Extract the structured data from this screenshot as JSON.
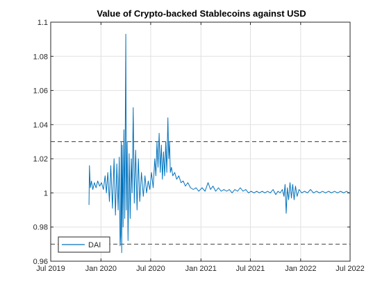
{
  "chart_data": {
    "type": "line",
    "title": "Value of Crypto-backed Stablecoins against USD",
    "xlabel": "",
    "ylabel": "",
    "x_ticks": [
      "Jul 2019",
      "Jan 2020",
      "Jul 2020",
      "Jan 2021",
      "Jul 2021",
      "Jan 2022",
      "Jul 2022"
    ],
    "y_ticks": [
      "0.96",
      "0.98",
      "1",
      "1.02",
      "1.04",
      "1.06",
      "1.08",
      "1.1"
    ],
    "xlim": [
      "2019-07-01",
      "2022-07-01"
    ],
    "ylim": [
      0.96,
      1.1
    ],
    "grid": true,
    "legend_position": "bottom-left",
    "reference_lines": [
      1.03,
      0.97
    ],
    "line_color": "#0072BD",
    "series": [
      {
        "name": "DAI",
        "points": [
          [
            "2019-11-18",
            0.993
          ],
          [
            "2019-11-20",
            1.016
          ],
          [
            "2019-11-23",
            1.003
          ],
          [
            "2019-11-27",
            1.007
          ],
          [
            "2019-12-02",
            1.002
          ],
          [
            "2019-12-08",
            1.006
          ],
          [
            "2019-12-14",
            1.003
          ],
          [
            "2019-12-20",
            1.007
          ],
          [
            "2019-12-27",
            1.004
          ],
          [
            "2020-01-03",
            1.006
          ],
          [
            "2020-01-10",
            1.002
          ],
          [
            "2020-01-16",
            1.01
          ],
          [
            "2020-01-21",
            1.0
          ],
          [
            "2020-01-26",
            1.012
          ],
          [
            "2020-02-01",
            0.995
          ],
          [
            "2020-02-06",
            1.016
          ],
          [
            "2020-02-12",
            0.991
          ],
          [
            "2020-02-18",
            1.02
          ],
          [
            "2020-02-23",
            0.987
          ],
          [
            "2020-02-28",
            1.017
          ],
          [
            "2020-03-04",
            0.99
          ],
          [
            "2020-03-08",
            1.021
          ],
          [
            "2020-03-11",
            0.969
          ],
          [
            "2020-03-13",
            0.975
          ],
          [
            "2020-03-15",
            1.03
          ],
          [
            "2020-03-17",
            0.965
          ],
          [
            "2020-03-19",
            1.028
          ],
          [
            "2020-03-22",
            0.98
          ],
          [
            "2020-03-25",
            1.037
          ],
          [
            "2020-03-28",
            0.985
          ],
          [
            "2020-04-01",
            1.093
          ],
          [
            "2020-04-03",
            0.99
          ],
          [
            "2020-04-06",
            1.03
          ],
          [
            "2020-04-09",
            0.972
          ],
          [
            "2020-04-13",
            1.023
          ],
          [
            "2020-04-17",
            0.985
          ],
          [
            "2020-04-21",
            1.02
          ],
          [
            "2020-04-24",
            1.0
          ],
          [
            "2020-04-28",
            1.05
          ],
          [
            "2020-05-02",
            0.994
          ],
          [
            "2020-05-07",
            1.025
          ],
          [
            "2020-05-12",
            0.99
          ],
          [
            "2020-05-17",
            1.02
          ],
          [
            "2020-05-22",
            0.995
          ],
          [
            "2020-05-28",
            1.012
          ],
          [
            "2020-06-04",
            0.998
          ],
          [
            "2020-06-10",
            1.01
          ],
          [
            "2020-06-16",
            1.0
          ],
          [
            "2020-06-22",
            1.007
          ],
          [
            "2020-06-28",
            1.002
          ],
          [
            "2020-07-04",
            1.012
          ],
          [
            "2020-07-10",
            1.003
          ],
          [
            "2020-07-16",
            1.02
          ],
          [
            "2020-07-20",
            1.01
          ],
          [
            "2020-07-24",
            1.03
          ],
          [
            "2020-07-28",
            1.015
          ],
          [
            "2020-08-01",
            1.035
          ],
          [
            "2020-08-05",
            1.012
          ],
          [
            "2020-08-09",
            1.028
          ],
          [
            "2020-08-13",
            1.008
          ],
          [
            "2020-08-17",
            1.024
          ],
          [
            "2020-08-21",
            1.01
          ],
          [
            "2020-08-25",
            1.03
          ],
          [
            "2020-08-29",
            1.012
          ],
          [
            "2020-09-02",
            1.044
          ],
          [
            "2020-09-05",
            1.02
          ],
          [
            "2020-09-08",
            1.03
          ],
          [
            "2020-09-11",
            1.012
          ],
          [
            "2020-09-15",
            1.015
          ],
          [
            "2020-09-20",
            1.01
          ],
          [
            "2020-09-27",
            1.012
          ],
          [
            "2020-10-04",
            1.008
          ],
          [
            "2020-10-12",
            1.01
          ],
          [
            "2020-10-20",
            1.006
          ],
          [
            "2020-10-28",
            1.007
          ],
          [
            "2020-11-05",
            1.004
          ],
          [
            "2020-11-14",
            1.006
          ],
          [
            "2020-11-24",
            1.003
          ],
          [
            "2020-12-04",
            1.002
          ],
          [
            "2020-12-14",
            1.003
          ],
          [
            "2020-12-24",
            1.001
          ],
          [
            "2021-01-05",
            1.003
          ],
          [
            "2021-01-16",
            1.001
          ],
          [
            "2021-01-27",
            1.006
          ],
          [
            "2021-02-05",
            1.002
          ],
          [
            "2021-02-14",
            1.004
          ],
          [
            "2021-02-24",
            1.001
          ],
          [
            "2021-03-06",
            1.003
          ],
          [
            "2021-03-16",
            1.001
          ],
          [
            "2021-03-26",
            1.002
          ],
          [
            "2021-04-05",
            1.001
          ],
          [
            "2021-04-15",
            1.002
          ],
          [
            "2021-04-25",
            1.0
          ],
          [
            "2021-05-05",
            1.002
          ],
          [
            "2021-05-15",
            1.001
          ],
          [
            "2021-05-25",
            1.003
          ],
          [
            "2021-06-04",
            1.001
          ],
          [
            "2021-06-14",
            1.002
          ],
          [
            "2021-06-24",
            1.0
          ],
          [
            "2021-07-04",
            1.001
          ],
          [
            "2021-07-14",
            1.0
          ],
          [
            "2021-07-24",
            1.001
          ],
          [
            "2021-08-03",
            1.0
          ],
          [
            "2021-08-13",
            1.001
          ],
          [
            "2021-08-23",
            1.0
          ],
          [
            "2021-09-02",
            1.001
          ],
          [
            "2021-09-12",
            1.0
          ],
          [
            "2021-09-22",
            1.002
          ],
          [
            "2021-10-02",
            0.999
          ],
          [
            "2021-10-10",
            1.001
          ],
          [
            "2021-10-18",
            1.0
          ],
          [
            "2021-10-26",
            1.002
          ],
          [
            "2021-11-01",
            0.998
          ],
          [
            "2021-11-05",
            1.005
          ],
          [
            "2021-11-09",
            0.988
          ],
          [
            "2021-11-13",
            1.003
          ],
          [
            "2021-11-18",
            0.996
          ],
          [
            "2021-11-23",
            1.006
          ],
          [
            "2021-11-28",
            0.997
          ],
          [
            "2021-12-03",
            1.005
          ],
          [
            "2021-12-08",
            0.996
          ],
          [
            "2021-12-13",
            1.004
          ],
          [
            "2021-12-19",
            0.998
          ],
          [
            "2021-12-26",
            1.002
          ],
          [
            "2022-01-05",
            1.0
          ],
          [
            "2022-01-15",
            1.001
          ],
          [
            "2022-01-26",
            1.0
          ],
          [
            "2022-02-06",
            1.002
          ],
          [
            "2022-02-17",
            1.0
          ],
          [
            "2022-02-28",
            1.001
          ],
          [
            "2022-03-11",
            1.0
          ],
          [
            "2022-03-22",
            1.001
          ],
          [
            "2022-04-02",
            1.0
          ],
          [
            "2022-04-13",
            1.001
          ],
          [
            "2022-04-24",
            1.0
          ],
          [
            "2022-05-05",
            1.001
          ],
          [
            "2022-05-16",
            1.0
          ],
          [
            "2022-05-27",
            1.001
          ],
          [
            "2022-06-07",
            1.0
          ],
          [
            "2022-06-18",
            1.001
          ],
          [
            "2022-06-27",
            1.0
          ]
        ]
      }
    ]
  }
}
